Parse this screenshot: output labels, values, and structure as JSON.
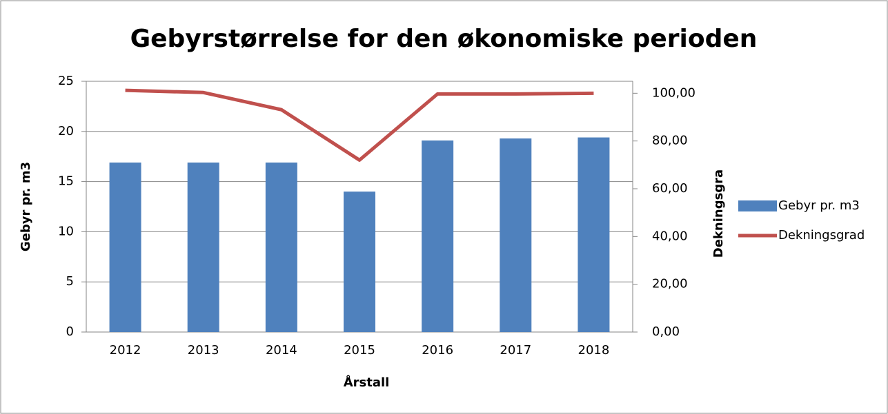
{
  "chart_data": {
    "type": "bar",
    "title": "Gebyrstørrelse for den økonomiske perioden",
    "x_label": "Årstall",
    "y_label": "Gebyr pr. m3",
    "y2_label": "Dekningsgra",
    "categories": [
      "2012",
      "2013",
      "2014",
      "2015",
      "2016",
      "2017",
      "2018"
    ],
    "series": [
      {
        "name": "Gebyr pr. m3",
        "type": "bar",
        "color": "#4f81bd",
        "values": [
          16.9,
          16.9,
          16.9,
          14.0,
          19.1,
          19.3,
          19.4
        ]
      },
      {
        "name": "Dekningsgrad",
        "type": "line",
        "axis": "y2",
        "color": "#c0504d",
        "values": [
          101.2,
          100.3,
          93.1,
          72.0,
          99.7,
          99.7,
          100.0
        ]
      }
    ],
    "ylim": [
      0,
      25
    ],
    "yticks": [
      0,
      5,
      10,
      15,
      20,
      25
    ],
    "y2lim": [
      0,
      105
    ],
    "y2ticks": [
      {
        "value": 0,
        "label": "0,00"
      },
      {
        "value": 20,
        "label": "20,00"
      },
      {
        "value": 40,
        "label": "40,00"
      },
      {
        "value": 60,
        "label": "60,00"
      },
      {
        "value": 80,
        "label": "80,00"
      },
      {
        "value": 100,
        "label": "100,00"
      }
    ],
    "grid": true,
    "legend": "right"
  }
}
